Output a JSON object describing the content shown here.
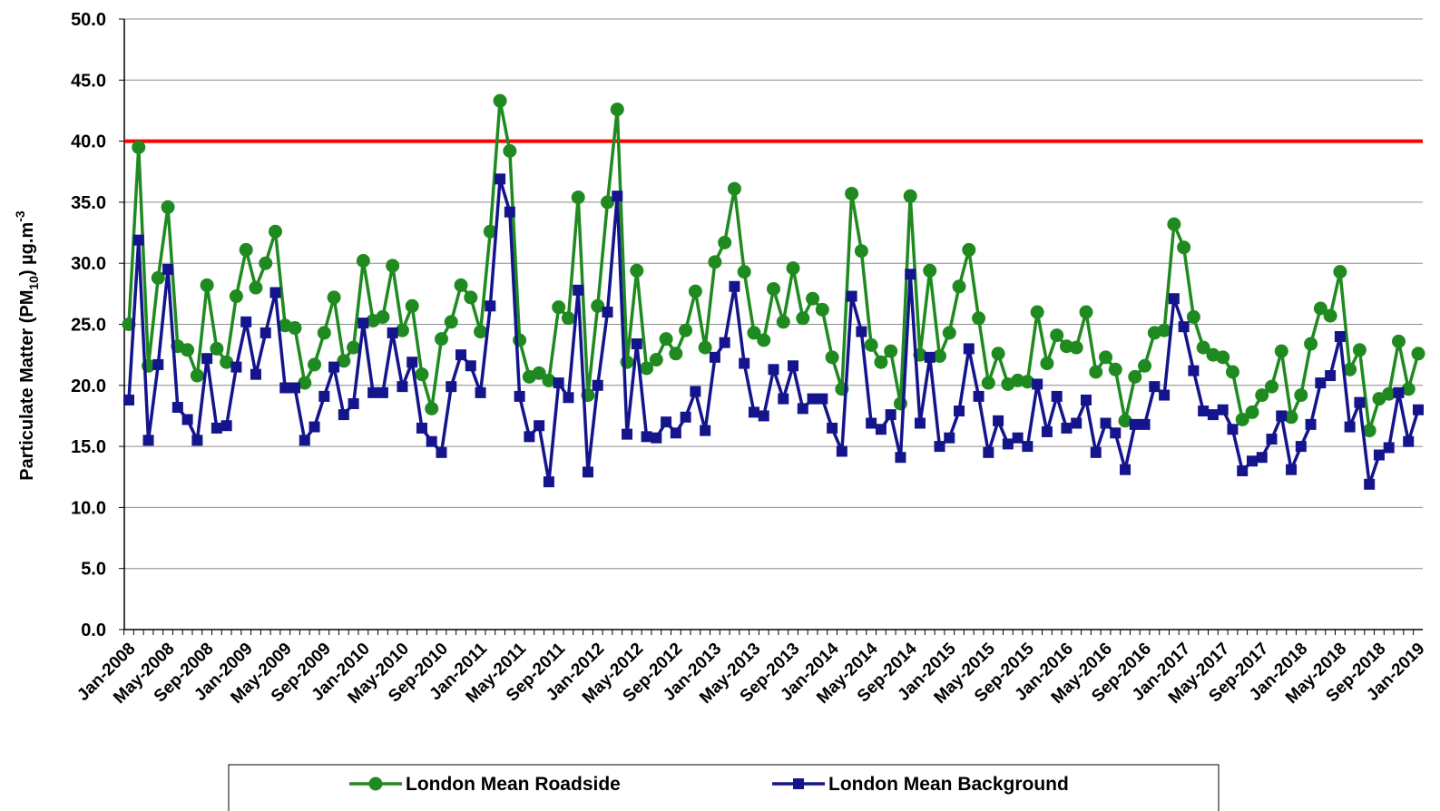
{
  "chart_data": {
    "type": "line",
    "y_label_parts": [
      "Particulate Matter (PM",
      "10",
      ") µg.m",
      "-3"
    ],
    "categories": [
      "Jan-2008",
      null,
      null,
      null,
      "May-2008",
      null,
      null,
      null,
      "Sep-2008",
      null,
      null,
      null,
      "Jan-2009",
      null,
      null,
      null,
      "May-2009",
      null,
      null,
      null,
      "Sep-2009",
      null,
      null,
      null,
      "Jan-2010",
      null,
      null,
      null,
      "May-2010",
      null,
      null,
      null,
      "Sep-2010",
      null,
      null,
      null,
      "Jan-2011",
      null,
      null,
      null,
      "May-2011",
      null,
      null,
      null,
      "Sep-2011",
      null,
      null,
      null,
      "Jan-2012",
      null,
      null,
      null,
      "May-2012",
      null,
      null,
      null,
      "Sep-2012",
      null,
      null,
      null,
      "Jan-2013",
      null,
      null,
      null,
      "May-2013",
      null,
      null,
      null,
      "Sep-2013",
      null,
      null,
      null,
      "Jan-2014",
      null,
      null,
      null,
      "May-2014",
      null,
      null,
      null,
      "Sep-2014",
      null,
      null,
      null,
      "Jan-2015",
      null,
      null,
      null,
      "May-2015",
      null,
      null,
      null,
      "Sep-2015",
      null,
      null,
      null,
      "Jan-2016",
      null,
      null,
      null,
      "May-2016",
      null,
      null,
      null,
      "Sep-2016",
      null,
      null,
      null,
      "Jan-2017",
      null,
      null,
      null,
      "May-2017",
      null,
      null,
      null,
      "Sep-2017",
      null,
      null,
      null,
      "Jan-2018",
      null,
      null,
      null,
      "May-2018",
      null,
      null,
      null,
      "Sep-2018",
      null,
      null,
      null,
      "Jan-2019"
    ],
    "series": [
      {
        "name": "London Mean Roadside",
        "color": "#1f8a1f",
        "marker": "circle",
        "values": [
          25.0,
          39.5,
          21.6,
          28.8,
          34.6,
          23.2,
          22.9,
          20.8,
          28.2,
          23.0,
          21.9,
          27.3,
          31.1,
          28.0,
          30.0,
          32.6,
          24.9,
          24.7,
          20.2,
          21.7,
          24.3,
          27.2,
          22.0,
          23.1,
          30.2,
          25.3,
          25.6,
          29.8,
          24.5,
          26.5,
          20.9,
          18.1,
          23.8,
          25.2,
          28.2,
          27.2,
          24.4,
          32.6,
          43.3,
          39.2,
          23.7,
          20.7,
          21.0,
          20.4,
          26.4,
          25.5,
          35.4,
          19.2,
          26.5,
          35.0,
          42.6,
          21.9,
          29.4,
          21.4,
          22.1,
          23.8,
          22.6,
          24.5,
          27.7,
          23.1,
          30.1,
          31.7,
          36.1,
          29.3,
          24.3,
          23.7,
          27.9,
          25.2,
          29.6,
          25.5,
          27.1,
          26.2,
          22.3,
          19.7,
          35.7,
          31.0,
          23.3,
          21.9,
          22.8,
          18.5,
          35.5,
          22.5,
          29.4,
          22.4,
          24.3,
          28.1,
          31.1,
          25.5,
          20.2,
          22.6,
          20.1,
          20.4,
          20.3,
          26.0,
          21.8,
          24.1,
          23.2,
          23.1,
          26.0,
          21.1,
          22.3,
          21.3,
          17.1,
          20.7,
          21.6,
          24.3,
          24.5,
          33.2,
          31.3,
          25.6,
          23.1,
          22.5,
          22.3,
          21.1,
          17.2,
          17.8,
          19.2,
          19.9,
          22.8,
          17.4,
          19.2,
          23.4,
          26.3,
          25.7,
          29.3,
          21.3,
          22.9,
          16.3,
          18.9,
          19.3,
          23.6,
          19.7,
          22.6
        ]
      },
      {
        "name": "London Mean Background",
        "color": "#14148c",
        "marker": "square",
        "values": [
          18.8,
          31.9,
          15.5,
          21.7,
          29.5,
          18.2,
          17.2,
          15.5,
          22.2,
          16.5,
          16.7,
          21.5,
          25.2,
          20.9,
          24.3,
          27.6,
          19.8,
          19.8,
          15.5,
          16.6,
          19.1,
          21.5,
          17.6,
          18.5,
          25.1,
          19.4,
          19.4,
          24.3,
          19.9,
          21.9,
          16.5,
          15.4,
          14.5,
          19.9,
          22.5,
          21.6,
          19.4,
          26.5,
          36.9,
          34.2,
          19.1,
          15.8,
          16.7,
          12.1,
          20.2,
          19.0,
          27.8,
          12.9,
          20.0,
          26.0,
          35.5,
          16.0,
          23.4,
          15.8,
          15.7,
          17.0,
          16.1,
          17.4,
          19.5,
          16.3,
          22.3,
          23.5,
          28.1,
          21.8,
          17.8,
          17.5,
          21.3,
          18.9,
          21.6,
          18.1,
          18.9,
          18.9,
          16.5,
          14.6,
          27.3,
          24.4,
          16.9,
          16.4,
          17.6,
          14.1,
          29.1,
          16.9,
          22.3,
          15.0,
          15.7,
          17.9,
          23.0,
          19.1,
          14.5,
          17.1,
          15.2,
          15.7,
          15.0,
          20.1,
          16.2,
          19.1,
          16.5,
          16.9,
          18.8,
          14.5,
          16.9,
          16.1,
          13.1,
          16.8,
          16.8,
          19.9,
          19.2,
          27.1,
          24.8,
          21.2,
          17.9,
          17.6,
          18.0,
          16.4,
          13.0,
          13.8,
          14.1,
          15.6,
          17.5,
          13.1,
          15.0,
          16.8,
          20.2,
          20.8,
          24.0,
          16.6,
          18.6,
          11.9,
          14.3,
          14.9,
          19.4,
          15.4,
          18.0
        ]
      }
    ],
    "limit_line": {
      "value": 40,
      "color": "#ff0000"
    },
    "ylim": [
      0,
      50
    ],
    "yticks": [
      {
        "value": 0,
        "label": "0.0"
      },
      {
        "value": 5,
        "label": "5.0"
      },
      {
        "value": 10,
        "label": "10.0"
      },
      {
        "value": 15,
        "label": "15.0"
      },
      {
        "value": 20,
        "label": "20.0"
      },
      {
        "value": 25,
        "label": "25.0"
      },
      {
        "value": 30,
        "label": "30.0"
      },
      {
        "value": 35,
        "label": "35.0"
      },
      {
        "value": 40,
        "label": "40.0"
      },
      {
        "value": 45,
        "label": "45.0"
      },
      {
        "value": 50,
        "label": "50.0"
      }
    ],
    "grid": true,
    "legend": "bottom"
  }
}
